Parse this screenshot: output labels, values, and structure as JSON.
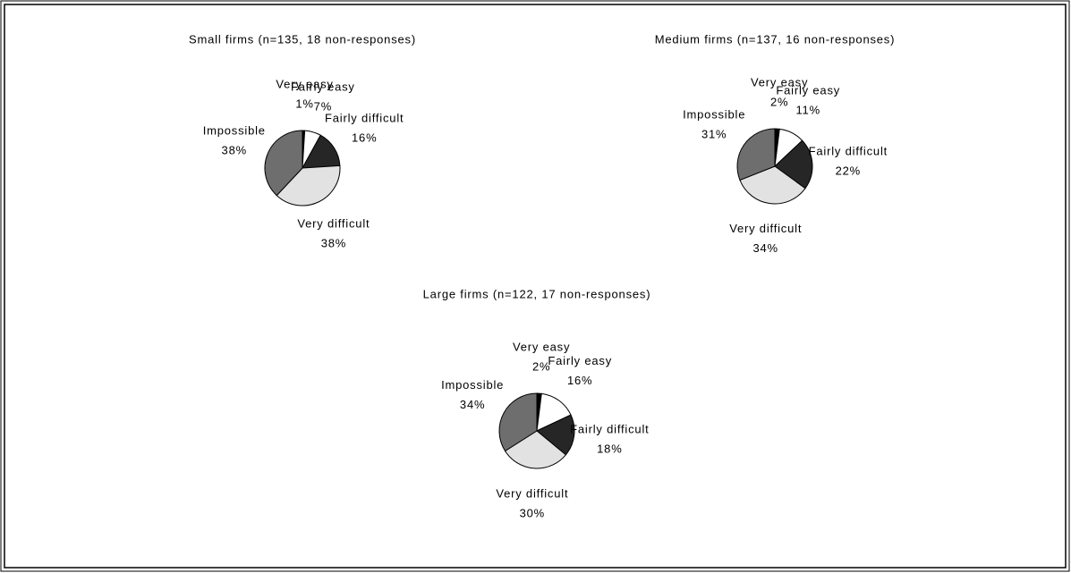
{
  "chart_data": [
    {
      "type": "pie",
      "title": "Small firms (n=135, 18 non-responses)",
      "categories": [
        "Very easy",
        "Fairly easy",
        "Fairly difficult",
        "Very difficult",
        "Impossible"
      ],
      "values": [
        1,
        7,
        16,
        38,
        38
      ],
      "value_labels": [
        "1%",
        "7%",
        "16%",
        "38%",
        "38%"
      ],
      "colors": [
        "#000000",
        "#ffffff",
        "#262626",
        "#e2e2e2",
        "#6e6e6e"
      ]
    },
    {
      "type": "pie",
      "title": "Medium firms (n=137, 16 non-responses)",
      "categories": [
        "Very easy",
        "Fairly easy",
        "Fairly difficult",
        "Very difficult",
        "Impossible"
      ],
      "values": [
        2,
        11,
        22,
        34,
        31
      ],
      "value_labels": [
        "2%",
        "11%",
        "22%",
        "34%",
        "31%"
      ],
      "colors": [
        "#000000",
        "#ffffff",
        "#262626",
        "#e2e2e2",
        "#6e6e6e"
      ]
    },
    {
      "type": "pie",
      "title": "Large firms (n=122, 17 non-responses)",
      "categories": [
        "Very easy",
        "Fairly easy",
        "Fairly difficult",
        "Very difficult",
        "Impossible"
      ],
      "values": [
        2,
        16,
        18,
        30,
        34
      ],
      "value_labels": [
        "2%",
        "16%",
        "18%",
        "30%",
        "34%"
      ],
      "colors": [
        "#000000",
        "#ffffff",
        "#262626",
        "#e2e2e2",
        "#6e6e6e"
      ]
    }
  ]
}
